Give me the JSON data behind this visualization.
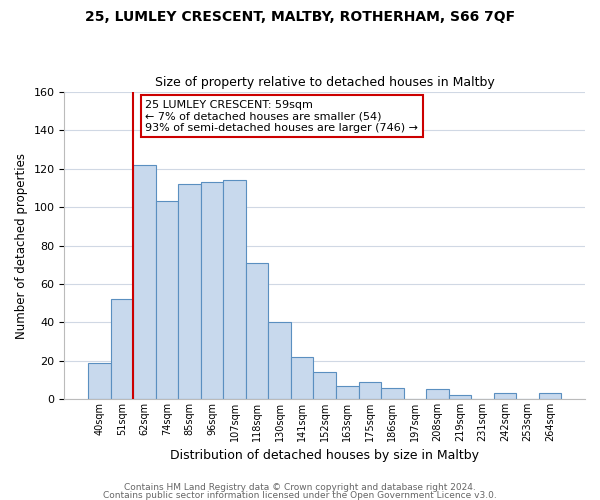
{
  "title1": "25, LUMLEY CRESCENT, MALTBY, ROTHERHAM, S66 7QF",
  "title2": "Size of property relative to detached houses in Maltby",
  "xlabel": "Distribution of detached houses by size in Maltby",
  "ylabel": "Number of detached properties",
  "bar_labels": [
    "40sqm",
    "51sqm",
    "62sqm",
    "74sqm",
    "85sqm",
    "96sqm",
    "107sqm",
    "118sqm",
    "130sqm",
    "141sqm",
    "152sqm",
    "163sqm",
    "175sqm",
    "186sqm",
    "197sqm",
    "208sqm",
    "219sqm",
    "231sqm",
    "242sqm",
    "253sqm",
    "264sqm"
  ],
  "bar_heights": [
    19,
    52,
    122,
    103,
    112,
    113,
    114,
    71,
    40,
    22,
    14,
    7,
    9,
    6,
    0,
    5,
    2,
    0,
    3,
    0,
    3
  ],
  "bar_color": "#c8d9ed",
  "bar_edge_color": "#5a8fc0",
  "vline_color": "#cc0000",
  "annotation_title": "25 LUMLEY CRESCENT: 59sqm",
  "annotation_line1": "← 7% of detached houses are smaller (54)",
  "annotation_line2": "93% of semi-detached houses are larger (746) →",
  "ylim": [
    0,
    160
  ],
  "yticks": [
    0,
    20,
    40,
    60,
    80,
    100,
    120,
    140,
    160
  ],
  "footer1": "Contains HM Land Registry data © Crown copyright and database right 2024.",
  "footer2": "Contains public sector information licensed under the Open Government Licence v3.0.",
  "background_color": "#ffffff",
  "grid_color": "#d0d8e4"
}
